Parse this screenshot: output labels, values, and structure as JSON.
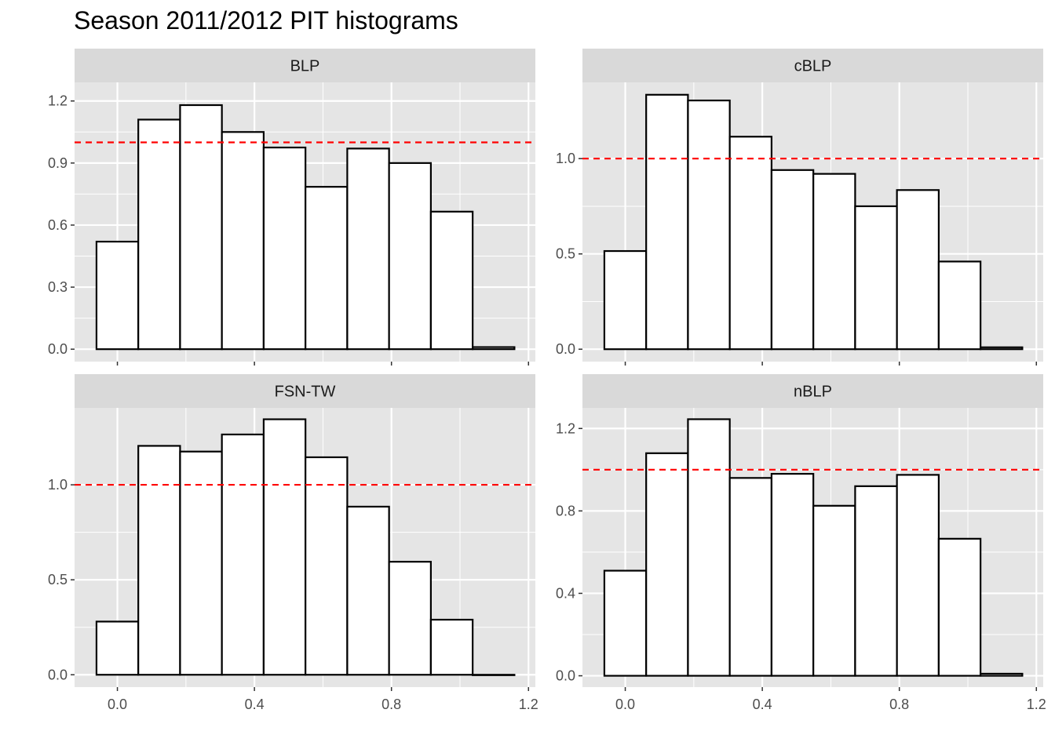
{
  "chart_data": {
    "type": "bar",
    "title": "Season 2011/2012 PIT histograms",
    "xlabel": "",
    "ylabel": "",
    "bin_width": 0.122,
    "bin_centers": [
      0.0,
      0.122,
      0.244,
      0.366,
      0.488,
      0.61,
      0.732,
      0.854,
      0.976,
      1.098
    ],
    "x_ticks": [
      0.0,
      0.4,
      0.8,
      1.2
    ],
    "x_tick_labels": [
      "0.0",
      "0.4",
      "0.8",
      "1.2"
    ],
    "xlim": [
      -0.125,
      1.22
    ],
    "reference_line": {
      "y": 1.0,
      "color": "#ff0000",
      "style": "dashed"
    },
    "colors": {
      "panel_background": "#e5e5e5",
      "strip_background": "#d9d9d9",
      "bar_fill": "#ffffff",
      "bar_outline": "#000000",
      "grid": "#ffffff"
    },
    "panels": [
      {
        "name": "BLP",
        "values": [
          0.52,
          1.11,
          1.18,
          1.05,
          0.975,
          0.785,
          0.97,
          0.9,
          0.665,
          0.01
        ],
        "ylim": [
          -0.06,
          1.29
        ],
        "y_ticks": [
          0.0,
          0.3,
          0.6,
          0.9,
          1.2
        ],
        "y_tick_labels": [
          "0.0",
          "0.3",
          "0.6",
          "0.9",
          "1.2"
        ]
      },
      {
        "name": "cBLP",
        "values": [
          0.515,
          1.335,
          1.305,
          1.115,
          0.94,
          0.92,
          0.75,
          0.835,
          0.46,
          0.01
        ],
        "ylim": [
          -0.065,
          1.4
        ],
        "y_ticks": [
          0.0,
          0.5,
          1.0
        ],
        "y_tick_labels": [
          "0.0",
          "0.5",
          "1.0"
        ]
      },
      {
        "name": "FSN-TW",
        "values": [
          0.28,
          1.205,
          1.175,
          1.265,
          1.345,
          1.145,
          0.885,
          0.595,
          0.29,
          0.0
        ],
        "ylim": [
          -0.065,
          1.405
        ],
        "y_ticks": [
          0.0,
          0.5,
          1.0
        ],
        "y_tick_labels": [
          "0.0",
          "0.5",
          "1.0"
        ]
      },
      {
        "name": "nBLP",
        "values": [
          0.51,
          1.08,
          1.245,
          0.96,
          0.98,
          0.825,
          0.92,
          0.975,
          0.665,
          0.01
        ],
        "ylim": [
          -0.055,
          1.3
        ],
        "y_ticks": [
          0.0,
          0.4,
          0.8,
          1.2
        ],
        "y_tick_labels": [
          "0.0",
          "0.4",
          "0.8",
          "1.2"
        ]
      }
    ]
  }
}
